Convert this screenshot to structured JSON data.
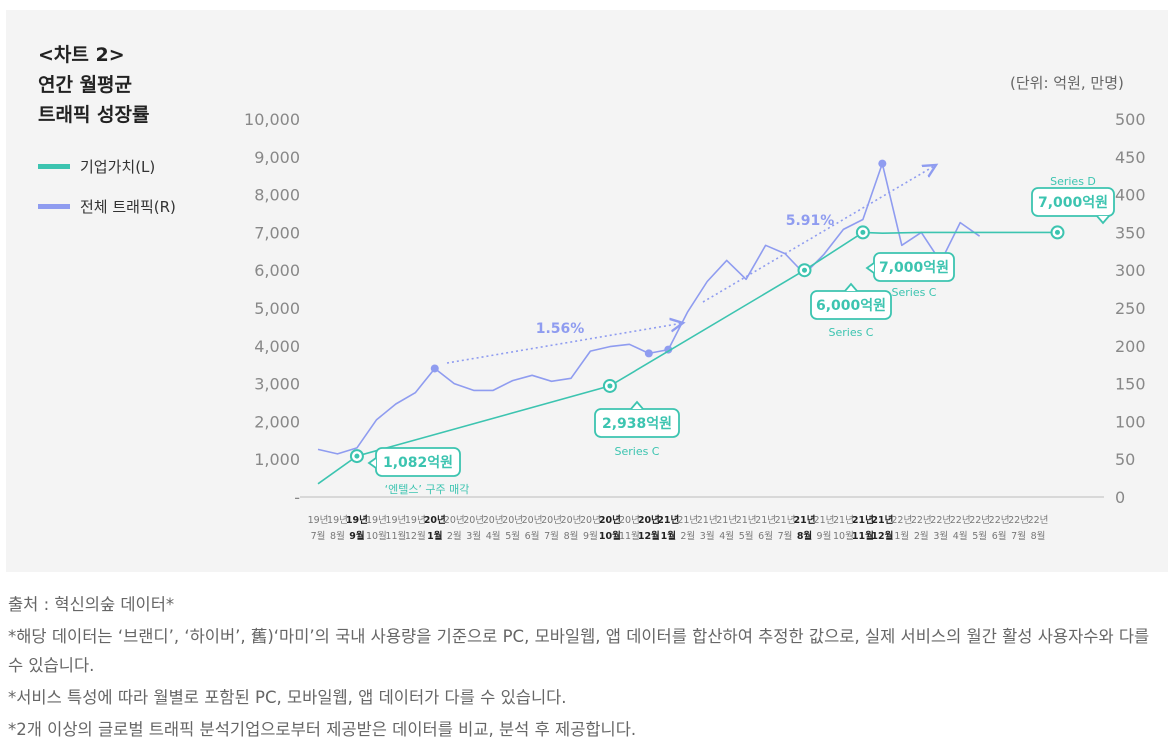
{
  "title_lines": [
    "<차트 2>",
    "연간 월평균",
    "트래픽 성장률"
  ],
  "unit": "(단위: 억원, 만명)",
  "legend": [
    {
      "label": "기업가치(L)",
      "color": "#3cc4b0"
    },
    {
      "label": "전체 트래픽(R)",
      "color": "#8f9cf0"
    }
  ],
  "notes": {
    "source": "출처 : 혁신의숲 데이터*",
    "note1": "*해당 데이터는 ‘브랜디’, ‘하이버’, 舊)‘마미’의 국내 사용량을 기준으로 PC, 모바일웹, 앱 데이터를 합산하여 추정한 값으로, 실제 서비스의 월간 활성 사용자수와 다를 수 있습니다.",
    "note2": "*서비스 특성에 따라 월별로 포함된 PC, 모바일웹, 앱 데이터가 다를 수 있습니다.",
    "note3": "*2개 이상의 글로벌 트래픽 분석기업으로부터 제공받은 데이터를 비교, 분석 후 제공합니다."
  },
  "chart_data": {
    "type": "line",
    "categories": [
      [
        "19년",
        "7월"
      ],
      [
        "19년",
        "8월"
      ],
      [
        "19년",
        "9월"
      ],
      [
        "19년",
        "10월"
      ],
      [
        "19년",
        "11월"
      ],
      [
        "19년",
        "12월"
      ],
      [
        "20년",
        "1월"
      ],
      [
        "20년",
        "2월"
      ],
      [
        "20년",
        "3월"
      ],
      [
        "20년",
        "4월"
      ],
      [
        "20년",
        "5월"
      ],
      [
        "20년",
        "6월"
      ],
      [
        "20년",
        "7월"
      ],
      [
        "20년",
        "8월"
      ],
      [
        "20년",
        "9월"
      ],
      [
        "20년",
        "10월"
      ],
      [
        "20년",
        "11월"
      ],
      [
        "20년",
        "12월"
      ],
      [
        "21년",
        "1월"
      ],
      [
        "21년",
        "2월"
      ],
      [
        "21년",
        "3월"
      ],
      [
        "21년",
        "4월"
      ],
      [
        "21년",
        "5월"
      ],
      [
        "21년",
        "6월"
      ],
      [
        "21년",
        "7월"
      ],
      [
        "21년",
        "8월"
      ],
      [
        "21년",
        "9월"
      ],
      [
        "21년",
        "10월"
      ],
      [
        "21년",
        "11월"
      ],
      [
        "21년",
        "12월"
      ],
      [
        "22년",
        "1월"
      ],
      [
        "22년",
        "2월"
      ],
      [
        "22년",
        "3월"
      ],
      [
        "22년",
        "4월"
      ],
      [
        "22년",
        "5월"
      ],
      [
        "22년",
        "6월"
      ],
      [
        "22년",
        "7월"
      ],
      [
        "22년",
        "8월"
      ]
    ],
    "bold_categories": [
      2,
      6,
      15,
      17,
      18,
      25,
      28,
      29
    ],
    "y_left": {
      "min": 0,
      "max": 10000,
      "ticks": [
        "-",
        "1,000",
        "2,000",
        "3,000",
        "4,000",
        "5,000",
        "6,000",
        "7,000",
        "8,000",
        "9,000",
        "10,000"
      ]
    },
    "y_right": {
      "min": 0,
      "max": 500,
      "ticks": [
        "0",
        "50",
        "100",
        "150",
        "200",
        "250",
        "300",
        "350",
        "400",
        "450",
        "500"
      ]
    },
    "series": [
      {
        "name": "기업가치(L)",
        "axis": "left",
        "color": "#3cc4b0",
        "points": [
          [
            0,
            350
          ],
          [
            2,
            1082
          ],
          [
            15,
            2938
          ],
          [
            25,
            6000
          ],
          [
            28,
            7000
          ],
          [
            29,
            6980
          ],
          [
            31,
            7000
          ],
          [
            38,
            7000
          ]
        ],
        "markers": [
          2,
          15,
          25,
          28,
          38
        ]
      },
      {
        "name": "전체 트래픽(R)",
        "axis": "right",
        "color": "#8f9cf0",
        "values": [
          63,
          57,
          65,
          102,
          123,
          138,
          170,
          150,
          141,
          141,
          154,
          161,
          153,
          157,
          193,
          199,
          202,
          190,
          195,
          245,
          285,
          313,
          288,
          333,
          322,
          295,
          321,
          354,
          367,
          441,
          333,
          350,
          311,
          363,
          345,
          null,
          null,
          null
        ],
        "markers": [
          6,
          17,
          18,
          29
        ]
      }
    ],
    "annotations": [
      {
        "value": "1,082억원",
        "sub": "‘엔텔스’ 구주 매각",
        "color": "#3cc4b0"
      },
      {
        "value": "2,938억원",
        "sub": "Series C",
        "color": "#3cc4b0"
      },
      {
        "value": "6,000억원",
        "sub": "Series C",
        "color": "#3cc4b0"
      },
      {
        "value": "7,000억원",
        "sub": "Series C",
        "color": "#3cc4b0"
      },
      {
        "value": "7,000억원",
        "sub": "Series D",
        "color": "#3cc4b0"
      }
    ],
    "trend_labels": [
      {
        "value": "1.56%",
        "color": "#8f9cf0"
      },
      {
        "value": "5.91%",
        "color": "#8f9cf0"
      }
    ]
  }
}
